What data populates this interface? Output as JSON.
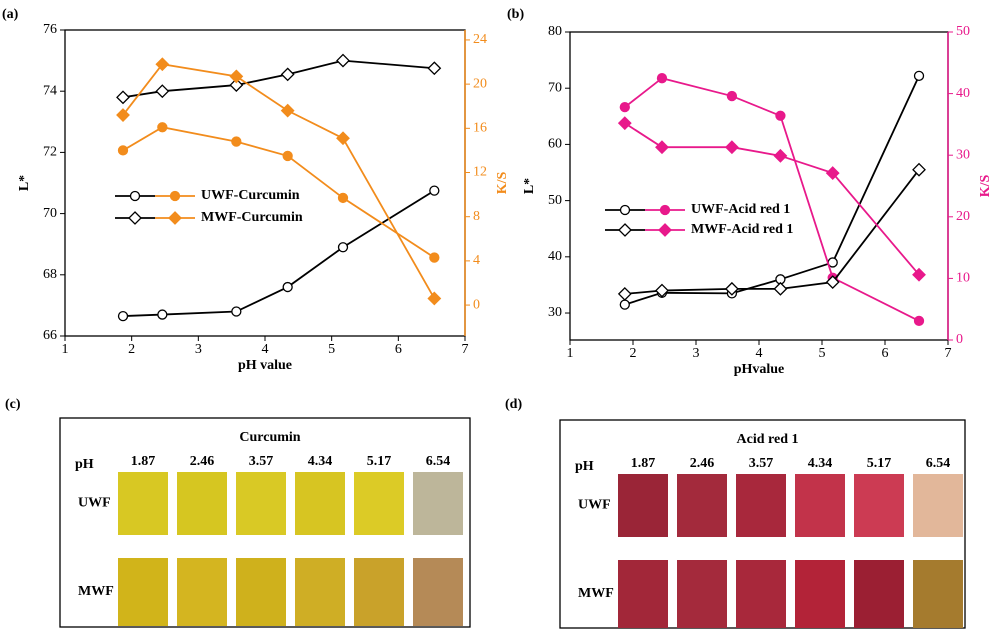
{
  "chart_data": [
    {
      "type": "line",
      "panel_label": "(a)",
      "xlabel": "pH value",
      "ylabel": "L*",
      "y2label": "K/S",
      "x": [
        1.87,
        2.46,
        3.57,
        4.34,
        5.17,
        6.54
      ],
      "xlim": [
        1,
        7
      ],
      "xticks": [
        1,
        2,
        3,
        4,
        5,
        6,
        7
      ],
      "ylim": [
        66,
        76
      ],
      "yticks": [
        66,
        68,
        70,
        72,
        74,
        76
      ],
      "y2lim": [
        -2.8,
        24.9
      ],
      "y2ticks": [
        0,
        4,
        8,
        12,
        16,
        20,
        24
      ],
      "y2_color": "#f28c1c",
      "series": [
        {
          "name": "UWF-Curcumin",
          "color": "#000000",
          "marker": "circle",
          "filled": false,
          "values": [
            66.65,
            66.7,
            66.8,
            67.6,
            68.9,
            70.75
          ]
        },
        {
          "name": "UWF-Curcumin",
          "color": "#f28c1c",
          "marker": "circle",
          "filled": true,
          "axis": "y2",
          "values": [
            14.0,
            16.1,
            14.8,
            13.5,
            9.7,
            4.3
          ]
        },
        {
          "name": "MWF-Curcumin",
          "color": "#000000",
          "marker": "diamond",
          "filled": false,
          "values": [
            73.8,
            74.0,
            74.2,
            74.55,
            75.0,
            74.75
          ]
        },
        {
          "name": "MWF-Curcumin",
          "color": "#f28c1c",
          "marker": "diamond",
          "filled": true,
          "axis": "y2",
          "values": [
            17.2,
            21.8,
            20.7,
            17.6,
            15.1,
            0.6
          ]
        }
      ]
    },
    {
      "type": "line",
      "panel_label": "(b)",
      "xlabel": "pHvalue",
      "ylabel": "L*",
      "y2label": "K/S",
      "x": [
        1.87,
        2.46,
        3.57,
        4.34,
        5.17,
        6.54
      ],
      "xlim": [
        1,
        7
      ],
      "xticks": [
        1,
        2,
        3,
        4,
        5,
        6,
        7
      ],
      "ylim": [
        25.2,
        80
      ],
      "yticks": [
        30,
        40,
        50,
        60,
        70,
        80
      ],
      "y2lim": [
        0,
        50
      ],
      "y2ticks": [
        0,
        10,
        20,
        30,
        40,
        50
      ],
      "y2_color": "#e8198b",
      "series": [
        {
          "name": "UWF-Acid red 1",
          "color": "#000000",
          "marker": "circle",
          "filled": false,
          "values": [
            31.5,
            33.6,
            33.5,
            36,
            39,
            72.2
          ]
        },
        {
          "name": "UWF-Acid red 1",
          "color": "#e8198b",
          "marker": "circle",
          "filled": true,
          "axis": "y2",
          "values": [
            37.8,
            42.5,
            39.6,
            36.4,
            10.1,
            3.1
          ]
        },
        {
          "name": "MWF-Acid red 1",
          "color": "#000000",
          "marker": "diamond",
          "filled": false,
          "values": [
            33.4,
            34,
            34.3,
            34.3,
            35.5,
            55.5
          ]
        },
        {
          "name": "MWF-Acid red 1",
          "color": "#e8198b",
          "marker": "diamond",
          "filled": true,
          "axis": "y2",
          "values": [
            35.2,
            31.3,
            31.3,
            29.9,
            27.1,
            10.6
          ]
        }
      ]
    }
  ],
  "swatches": [
    {
      "label": "(c)",
      "title": "Curcumin",
      "ph_label": "pH",
      "ph": [
        1.87,
        2.46,
        3.57,
        4.34,
        5.17,
        6.54
      ],
      "rows": [
        {
          "name": "UWF",
          "colors": [
            "#d8c823",
            "#d6c621",
            "#d9c925",
            "#d7c522",
            "#dccb26",
            "#bdb69a"
          ]
        },
        {
          "name": "MWF",
          "colors": [
            "#d1b41a",
            "#d4b520",
            "#cfb11c",
            "#cfae25",
            "#c9a22a",
            "#b58a57"
          ]
        }
      ]
    },
    {
      "label": "(d)",
      "title": "Acid red 1",
      "ph_label": "pH",
      "ph": [
        1.87,
        2.46,
        3.57,
        4.34,
        5.17,
        6.54
      ],
      "rows": [
        {
          "name": "UWF",
          "colors": [
            "#9a2537",
            "#a32a3c",
            "#a8283c",
            "#c2334a",
            "#cc3b53",
            "#e2b79a"
          ]
        },
        {
          "name": "MWF",
          "colors": [
            "#a22739",
            "#a42a3c",
            "#a8283b",
            "#b32338",
            "#9b1f33",
            "#a57b2e"
          ]
        }
      ]
    }
  ]
}
